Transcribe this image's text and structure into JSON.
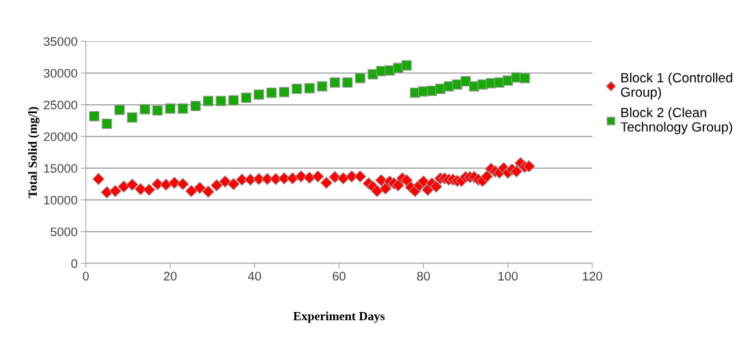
{
  "chart_data": {
    "type": "scatter",
    "xlabel": "Experiment Days",
    "ylabel": "Total Solid (mg/l)",
    "xlim": [
      0,
      120
    ],
    "xticks": [
      0,
      20,
      40,
      60,
      80,
      100,
      120
    ],
    "ylim": [
      0,
      35000
    ],
    "yticks": [
      0,
      5000,
      10000,
      15000,
      20000,
      25000,
      30000,
      35000
    ],
    "grid": "y",
    "legend": "right",
    "series": [
      {
        "name": "Block 1 (Controlled Group)",
        "color": "#ff0000",
        "marker": "diamond",
        "x": [
          3,
          5,
          7,
          9,
          11,
          13,
          15,
          17,
          19,
          21,
          23,
          25,
          27,
          29,
          31,
          33,
          35,
          37,
          39,
          41,
          43,
          45,
          47,
          49,
          51,
          53,
          55,
          57,
          59,
          61,
          63,
          65,
          67,
          68,
          69,
          70,
          71,
          72,
          73,
          74,
          75,
          76,
          77,
          78,
          79,
          80,
          81,
          82,
          83,
          84,
          85,
          86,
          87,
          88,
          89,
          90,
          91,
          92,
          93,
          94,
          95,
          96,
          97,
          98,
          99,
          100,
          101,
          102,
          103,
          104,
          105
        ],
        "values": [
          13300,
          11200,
          11400,
          12100,
          12400,
          11700,
          11600,
          12500,
          12400,
          12700,
          12500,
          11400,
          11900,
          11300,
          12300,
          12900,
          12500,
          13200,
          13200,
          13300,
          13300,
          13300,
          13400,
          13400,
          13700,
          13500,
          13700,
          12700,
          13600,
          13400,
          13700,
          13700,
          12600,
          12100,
          11400,
          13100,
          11800,
          12900,
          12600,
          12300,
          13400,
          13100,
          12000,
          11400,
          12300,
          12900,
          11600,
          12600,
          12100,
          13400,
          13400,
          13200,
          13200,
          13000,
          13000,
          13600,
          13600,
          13600,
          13200,
          13000,
          13700,
          14900,
          14500,
          14300,
          15000,
          14300,
          14800,
          14500,
          15800,
          15200,
          15300
        ]
      },
      {
        "name": "Block 2 (Clean Technology Group)",
        "color": "#18a808",
        "marker": "square",
        "x": [
          2,
          5,
          8,
          11,
          14,
          17,
          20,
          23,
          26,
          29,
          32,
          35,
          38,
          41,
          44,
          47,
          50,
          53,
          56,
          59,
          62,
          65,
          68,
          70,
          72,
          74,
          76,
          78,
          80,
          82,
          84,
          86,
          88,
          90,
          92,
          94,
          96,
          98,
          100,
          102,
          104
        ],
        "values": [
          23200,
          22000,
          24200,
          23000,
          24300,
          24100,
          24400,
          24400,
          24800,
          25600,
          25600,
          25700,
          26100,
          26600,
          26900,
          27000,
          27500,
          27600,
          27900,
          28500,
          28500,
          29200,
          29800,
          30300,
          30400,
          30800,
          31200,
          26900,
          27100,
          27200,
          27500,
          27900,
          28200,
          28700,
          27900,
          28200,
          28400,
          28500,
          28800,
          29300,
          29200
        ]
      }
    ]
  }
}
